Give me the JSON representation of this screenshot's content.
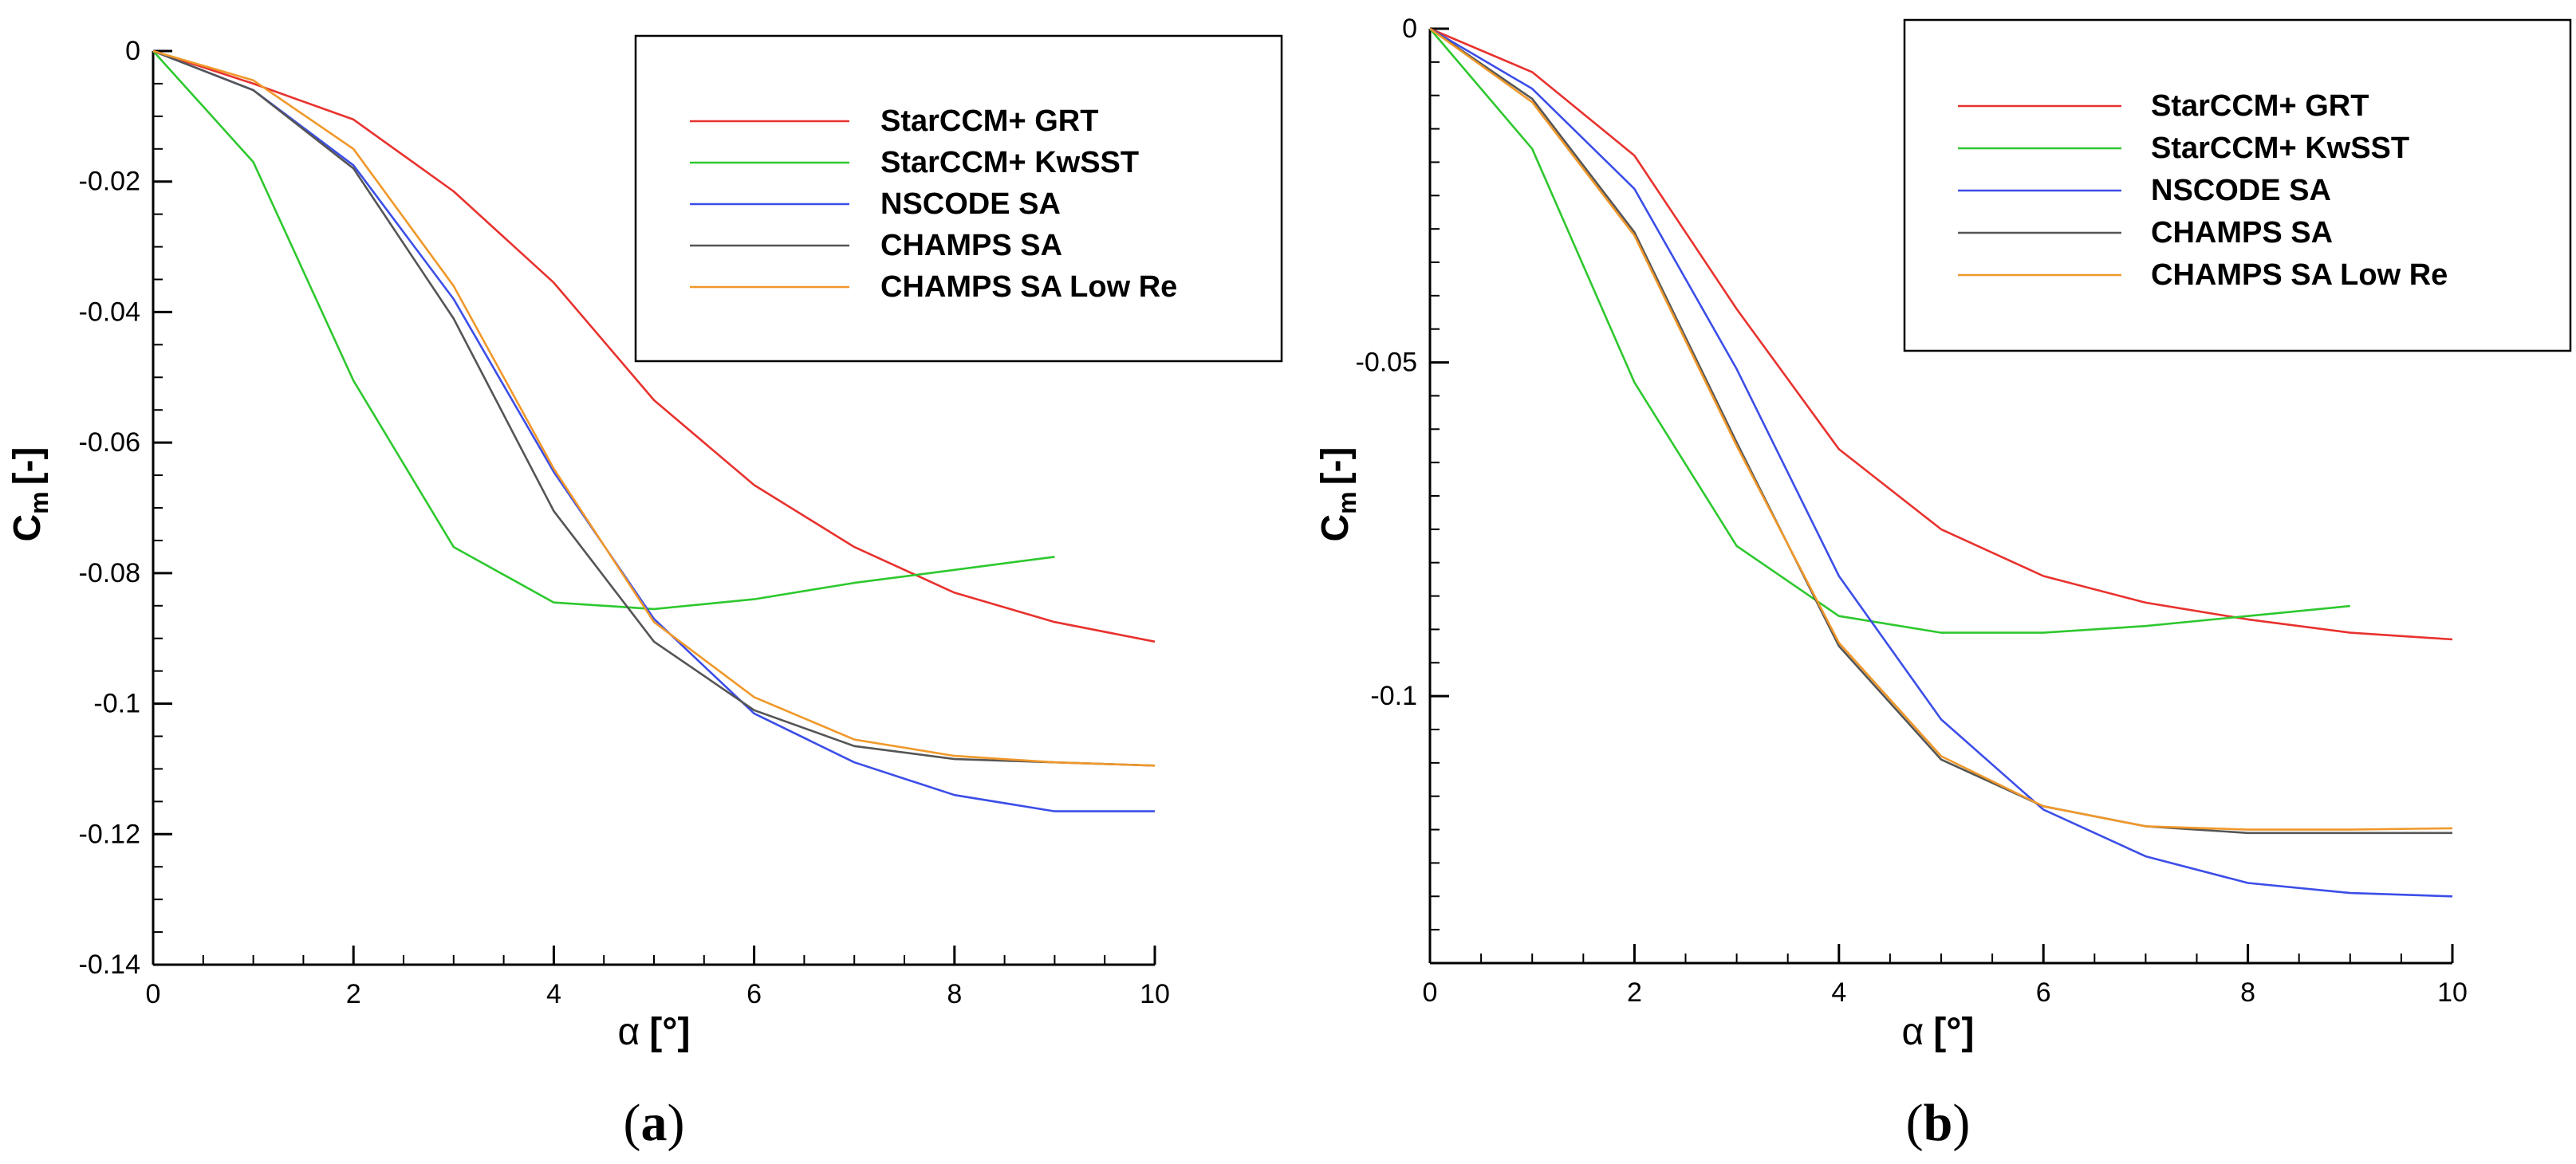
{
  "chart_data": [
    {
      "type": "line",
      "caption_letter": "a",
      "xlabel_symbol": "α",
      "xlabel_unit": "[°]",
      "ylabel_symbol": "C",
      "ylabel_subscript": "m",
      "ylabel_unit": "[-]",
      "xlim": [
        0,
        10
      ],
      "ylim": [
        -0.14,
        0
      ],
      "x_ticks": [
        0,
        2,
        4,
        6,
        8,
        10
      ],
      "x_tick_labels": [
        "0",
        "2",
        "4",
        "6",
        "8",
        "10"
      ],
      "y_ticks": [
        0,
        -0.02,
        -0.04,
        -0.06,
        -0.08,
        -0.1,
        -0.12,
        -0.14
      ],
      "y_tick_labels": [
        "0",
        "-0.02",
        "-0.04",
        "-0.06",
        "-0.08",
        "-0.1",
        "-0.12",
        "-0.14"
      ],
      "grid": false,
      "legend_position": "top-right",
      "series": [
        {
          "name": "StarCCM+ GRT",
          "color": "#e8322e",
          "x": [
            0,
            1,
            2,
            3,
            4,
            5,
            6,
            7,
            8,
            9,
            10
          ],
          "values": [
            0,
            -0.005,
            -0.0105,
            -0.0215,
            -0.0355,
            -0.0535,
            -0.0665,
            -0.076,
            -0.083,
            -0.0875,
            -0.0905
          ]
        },
        {
          "name": "StarCCM+ KwSST",
          "color": "#2ec82e",
          "x": [
            0,
            1,
            2,
            3,
            4,
            5,
            6,
            7,
            8,
            9
          ],
          "values": [
            0,
            -0.017,
            -0.0505,
            -0.076,
            -0.0845,
            -0.0855,
            -0.084,
            -0.0815,
            -0.0795,
            -0.0775
          ]
        },
        {
          "name": "NSCODE SA",
          "color": "#3c4ee8",
          "x": [
            0,
            1,
            2,
            3,
            4,
            5,
            6,
            7,
            8,
            9,
            10
          ],
          "values": [
            0,
            -0.006,
            -0.0175,
            -0.038,
            -0.0645,
            -0.087,
            -0.1015,
            -0.109,
            -0.114,
            -0.1165,
            -0.1165
          ]
        },
        {
          "name": "CHAMPS SA",
          "color": "#555555",
          "x": [
            0,
            1,
            2,
            3,
            4,
            5,
            6,
            7,
            8,
            9,
            10
          ],
          "values": [
            0,
            -0.006,
            -0.018,
            -0.041,
            -0.0705,
            -0.0905,
            -0.101,
            -0.1065,
            -0.1085,
            -0.109,
            -0.1095
          ]
        },
        {
          "name": "CHAMPS SA Low Re",
          "color": "#f0982a",
          "x": [
            0,
            1,
            2,
            3,
            4,
            5,
            6,
            7,
            8,
            9,
            10
          ],
          "values": [
            0,
            -0.0045,
            -0.015,
            -0.036,
            -0.064,
            -0.0875,
            -0.099,
            -0.1055,
            -0.108,
            -0.109,
            -0.1095
          ]
        }
      ]
    },
    {
      "type": "line",
      "caption_letter": "b",
      "xlabel_symbol": "α",
      "xlabel_unit": "[°]",
      "ylabel_symbol": "C",
      "ylabel_subscript": "m",
      "ylabel_unit": "[-]",
      "xlim": [
        0,
        10
      ],
      "ylim": [
        -0.14,
        0
      ],
      "x_ticks": [
        0,
        2,
        4,
        6,
        8,
        10
      ],
      "x_tick_labels": [
        "0",
        "2",
        "4",
        "6",
        "8",
        "10"
      ],
      "y_ticks": [
        0,
        -0.05,
        -0.1
      ],
      "y_tick_labels": [
        "0",
        "-0.05",
        "-0.1"
      ],
      "grid": false,
      "legend_position": "top-right",
      "series": [
        {
          "name": "StarCCM+ GRT",
          "color": "#e8322e",
          "x": [
            0,
            1,
            2,
            3,
            4,
            5,
            6,
            7,
            8,
            9,
            10
          ],
          "values": [
            0,
            -0.0065,
            -0.019,
            -0.042,
            -0.063,
            -0.075,
            -0.082,
            -0.086,
            -0.0885,
            -0.0905,
            -0.0915
          ]
        },
        {
          "name": "StarCCM+ KwSST",
          "color": "#2ec82e",
          "x": [
            0,
            1,
            2,
            3,
            4,
            5,
            6,
            7,
            8,
            9
          ],
          "values": [
            0,
            -0.018,
            -0.053,
            -0.0775,
            -0.088,
            -0.0905,
            -0.0905,
            -0.0895,
            -0.088,
            -0.0865
          ]
        },
        {
          "name": "NSCODE SA",
          "color": "#3c4ee8",
          "x": [
            0,
            1,
            2,
            3,
            4,
            5,
            6,
            7,
            8,
            9,
            10
          ],
          "values": [
            0,
            -0.009,
            -0.024,
            -0.051,
            -0.082,
            -0.1035,
            -0.117,
            -0.124,
            -0.128,
            -0.1295,
            -0.13
          ]
        },
        {
          "name": "CHAMPS SA",
          "color": "#555555",
          "x": [
            0,
            1,
            2,
            3,
            4,
            5,
            6,
            7,
            8,
            9,
            10
          ],
          "values": [
            0,
            -0.0105,
            -0.0305,
            -0.062,
            -0.0925,
            -0.1095,
            -0.1165,
            -0.1195,
            -0.1205,
            -0.1205,
            -0.1205
          ]
        },
        {
          "name": "CHAMPS SA Low Re",
          "color": "#f0982a",
          "x": [
            0,
            1,
            2,
            3,
            4,
            5,
            6,
            7,
            8,
            9,
            10
          ],
          "values": [
            0,
            -0.011,
            -0.031,
            -0.0625,
            -0.092,
            -0.109,
            -0.1165,
            -0.1195,
            -0.12,
            -0.12,
            -0.1198
          ]
        }
      ]
    }
  ]
}
